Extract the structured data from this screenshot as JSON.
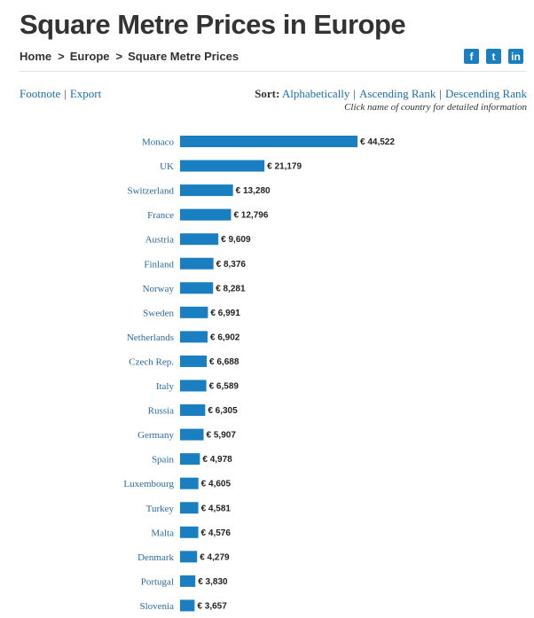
{
  "page": {
    "title": "Square Metre Prices in Europe",
    "breadcrumb": [
      "Home",
      "Europe",
      "Square Metre Prices"
    ],
    "breadcrumb_separator": ">",
    "social": [
      {
        "icon": "facebook-icon",
        "glyph": "f"
      },
      {
        "icon": "twitter-icon",
        "glyph": "t"
      },
      {
        "icon": "linkedin-icon",
        "glyph": "in"
      }
    ],
    "links": {
      "footnote": "Footnote",
      "export": "Export"
    },
    "sort": {
      "label": "Sort:",
      "alphabetically": "Alphabetically",
      "ascending": "Ascending Rank",
      "descending": "Descending Rank"
    },
    "hint": "Click name of country for detailed information",
    "colors": {
      "bar": "#1a7fc1",
      "link": "#1f6fa8",
      "social": "#1a7fc1"
    }
  },
  "chart_data": {
    "type": "bar",
    "orientation": "horizontal",
    "value_prefix": "€ ",
    "categories": [
      "Monaco",
      "UK",
      "Switzerland",
      "France",
      "Austria",
      "Finland",
      "Norway",
      "Sweden",
      "Netherlands",
      "Czech Rep.",
      "Italy",
      "Russia",
      "Germany",
      "Spain",
      "Luxembourg",
      "Turkey",
      "Malta",
      "Denmark",
      "Portugal",
      "Slovenia"
    ],
    "values": [
      44522,
      21179,
      13280,
      12796,
      9609,
      8376,
      8281,
      6991,
      6902,
      6688,
      6589,
      6305,
      5907,
      4978,
      4605,
      4581,
      4576,
      4279,
      3830,
      3657
    ],
    "value_labels": [
      "€ 44,522",
      "€ 21,179",
      "€ 13,280",
      "€ 12,796",
      "€ 9,609",
      "€ 8,376",
      "€ 8,281",
      "€ 6,991",
      "€ 6,902",
      "€ 6,688",
      "€ 6,589",
      "€ 6,305",
      "€ 5,907",
      "€ 4,978",
      "€ 4,605",
      "€ 4,581",
      "€ 4,576",
      "€ 4,279",
      "€ 3,830",
      "€ 3,657"
    ],
    "xlim": [
      0,
      44522
    ],
    "grid": false,
    "legend": "none",
    "title": "",
    "xlabel": "",
    "ylabel": ""
  }
}
